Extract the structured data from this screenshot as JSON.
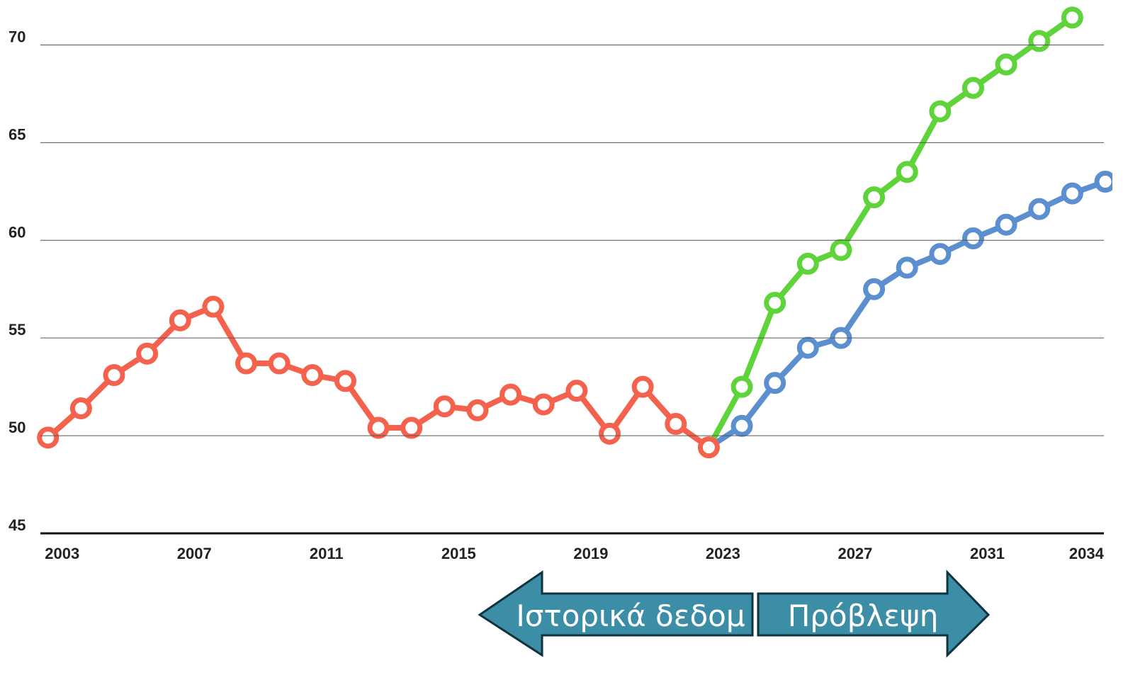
{
  "chart_data": {
    "type": "line",
    "xlim": [
      2002.77,
      2035
    ],
    "xticks": [
      2003,
      2007,
      2011,
      2015,
      2019,
      2023,
      2027,
      2031,
      2034
    ],
    "ylim": [
      45,
      72.3
    ],
    "yticks": [
      45,
      50,
      55,
      60,
      65,
      70
    ],
    "grid": true,
    "series": [
      {
        "color": "#f4614c",
        "x": [
          2003,
          2004,
          2005,
          2006,
          2007,
          2008,
          2009,
          2010,
          2011,
          2012,
          2013,
          2014,
          2015,
          2016,
          2017,
          2018,
          2019,
          2020,
          2021,
          2022,
          2023
        ],
        "values": [
          49.9,
          51.4,
          53.1,
          54.2,
          55.9,
          56.6,
          53.7,
          53.7,
          53.1,
          52.8,
          50.4,
          50.4,
          51.5,
          51.3,
          52.1,
          51.6,
          52.3,
          50.1,
          52.5,
          50.6,
          49.4
        ]
      },
      {
        "color": "#5fd33a",
        "x": [
          2024,
          2025,
          2026,
          2027,
          2028,
          2029,
          2030,
          2031,
          2032,
          2033,
          2034
        ],
        "values": [
          52.5,
          56.8,
          58.8,
          59.5,
          62.2,
          63.5,
          66.6,
          67.8,
          69.0,
          70.2,
          71.4
        ]
      },
      {
        "color": "#5b8fd0",
        "x": [
          2024,
          2025,
          2026,
          2027,
          2028,
          2029,
          2030,
          2031,
          2032,
          2033,
          2034,
          2035
        ],
        "values": [
          50.5,
          52.7,
          54.5,
          55.0,
          57.5,
          58.6,
          59.3,
          60.1,
          60.8,
          61.6,
          62.4,
          63.0
        ]
      }
    ],
    "annotations": [
      "Ιστορικά δεδομ",
      "Πρόβλεψη"
    ]
  }
}
